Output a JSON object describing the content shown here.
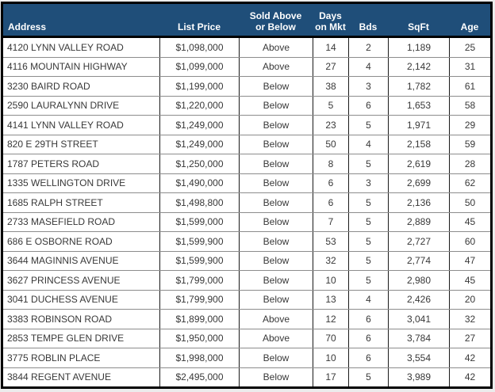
{
  "table": {
    "columns": [
      {
        "key": "address",
        "label": "Address"
      },
      {
        "key": "list_price",
        "label": "List Price"
      },
      {
        "key": "sold_above_below",
        "label": "Sold Above\nor Below"
      },
      {
        "key": "days_on_mkt",
        "label": "Days\non Mkt"
      },
      {
        "key": "bds",
        "label": "Bds"
      },
      {
        "key": "sqft",
        "label": "SqFt"
      },
      {
        "key": "age",
        "label": "Age"
      }
    ],
    "rows": [
      [
        "4120 LYNN VALLEY ROAD",
        "$1,098,000",
        "Above",
        "14",
        "2",
        "1,189",
        "25"
      ],
      [
        "4116 MOUNTAIN HIGHWAY",
        "$1,099,000",
        "Above",
        "27",
        "4",
        "2,142",
        "31"
      ],
      [
        "3230 BAIRD ROAD",
        "$1,199,000",
        "Below",
        "38",
        "3",
        "1,782",
        "61"
      ],
      [
        "2590 LAURALYNN DRIVE",
        "$1,220,000",
        "Below",
        "5",
        "6",
        "1,653",
        "58"
      ],
      [
        "4141 LYNN VALLEY ROAD",
        "$1,249,000",
        "Below",
        "23",
        "5",
        "1,971",
        "29"
      ],
      [
        "820 E 29TH STREET",
        "$1,249,000",
        "Below",
        "50",
        "4",
        "2,158",
        "59"
      ],
      [
        "1787 PETERS ROAD",
        "$1,250,000",
        "Below",
        "8",
        "5",
        "2,619",
        "28"
      ],
      [
        "1335 WELLINGTON DRIVE",
        "$1,490,000",
        "Below",
        "6",
        "3",
        "2,699",
        "62"
      ],
      [
        "1685 RALPH STREET",
        "$1,498,800",
        "Below",
        "6",
        "5",
        "2,136",
        "50"
      ],
      [
        "2733 MASEFIELD ROAD",
        "$1,599,000",
        "Below",
        "7",
        "5",
        "2,889",
        "45"
      ],
      [
        "686 E OSBORNE ROAD",
        "$1,599,900",
        "Below",
        "53",
        "5",
        "2,727",
        "60"
      ],
      [
        "3644 MAGINNIS AVENUE",
        "$1,599,900",
        "Below",
        "32",
        "5",
        "2,774",
        "47"
      ],
      [
        "3627 PRINCESS AVENUE",
        "$1,799,000",
        "Below",
        "10",
        "5",
        "2,980",
        "45"
      ],
      [
        "3041 DUCHESS AVENUE",
        "$1,799,900",
        "Below",
        "13",
        "4",
        "2,426",
        "20"
      ],
      [
        "3383 ROBINSON ROAD",
        "$1,899,000",
        "Above",
        "12",
        "6",
        "3,041",
        "32"
      ],
      [
        "2853 TEMPE GLEN DRIVE",
        "$1,950,000",
        "Above",
        "70",
        "6",
        "3,784",
        "27"
      ],
      [
        "3775 ROBLIN PLACE",
        "$1,998,000",
        "Below",
        "10",
        "6",
        "3,554",
        "42"
      ],
      [
        "3844 REGENT AVENUE",
        "$2,495,000",
        "Below",
        "17",
        "5",
        "3,989",
        "42"
      ]
    ]
  },
  "colors": {
    "header_bg": "#1F4E79",
    "header_text": "#FFFFFF",
    "body_text": "#383838",
    "outer_border": "#000000",
    "column_divider": "#1A1A1A",
    "row_divider": "#8C8C8C"
  }
}
